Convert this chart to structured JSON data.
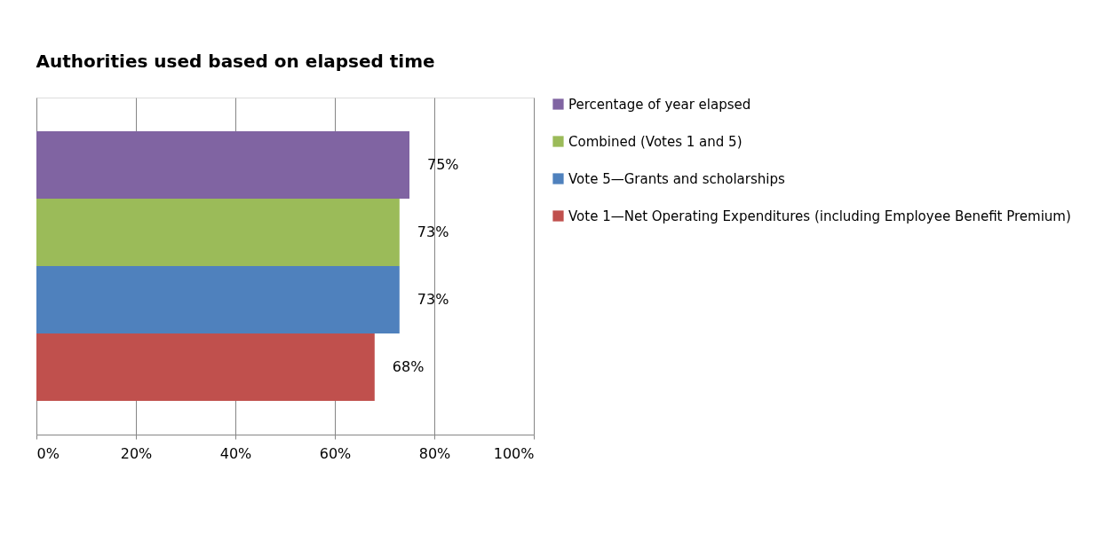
{
  "chart_data": {
    "type": "bar",
    "title": "Authorities used based on elapsed time",
    "orientation": "horizontal",
    "categories": [
      null
    ],
    "series": [
      {
        "name": "Percentage of year elapsed",
        "color": "#8064a2",
        "values": [
          75
        ],
        "value_labels": [
          "75%"
        ]
      },
      {
        "name": "Combined (Votes 1 and 5)",
        "color": "#9bbb59",
        "values": [
          73
        ],
        "value_labels": [
          "73%"
        ]
      },
      {
        "name": "Vote 5—Grants and scholarships",
        "color": "#4f81bd",
        "values": [
          73
        ],
        "value_labels": [
          "73%"
        ]
      },
      {
        "name": "Vote 1—Net Operating Expenditures (including Employee Benefit Premium)",
        "color": "#c0504d",
        "values": [
          68
        ],
        "value_labels": [
          "68%"
        ]
      }
    ],
    "xlim": [
      0,
      100
    ],
    "xticks": [
      {
        "value": 0,
        "label": "0%"
      },
      {
        "value": 20,
        "label": "20%"
      },
      {
        "value": 40,
        "label": "40%"
      },
      {
        "value": 60,
        "label": "60%"
      },
      {
        "value": 80,
        "label": "80%"
      },
      {
        "value": 100,
        "label": "100%"
      }
    ],
    "grid": "x",
    "legend": "right"
  }
}
